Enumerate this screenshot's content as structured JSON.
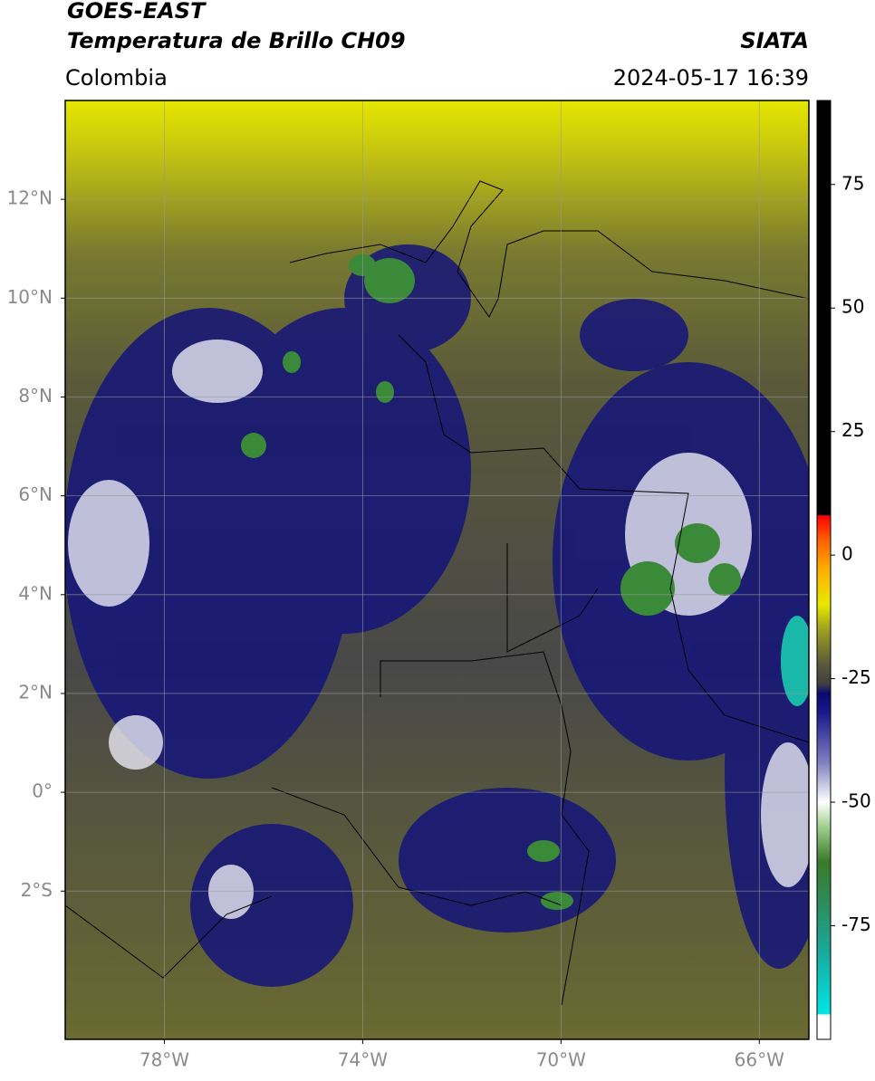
{
  "header": {
    "title": "GOES-EAST",
    "subtitle": "Temperatura de Brillo CH09",
    "source": "SIATA",
    "region": "Colombia",
    "timestamp": "2024-05-17 16:39"
  },
  "map": {
    "lon_range": [
      -80,
      -65
    ],
    "lat_range": [
      -5,
      14
    ],
    "grid": true,
    "lon_ticks": [
      {
        "value": -78,
        "label": "78°W"
      },
      {
        "value": -74,
        "label": "74°W"
      },
      {
        "value": -70,
        "label": "70°W"
      },
      {
        "value": -66,
        "label": "66°W"
      }
    ],
    "lat_ticks": [
      {
        "value": 12,
        "label": "12°N"
      },
      {
        "value": 10,
        "label": "10°N"
      },
      {
        "value": 8,
        "label": "8°N"
      },
      {
        "value": 6,
        "label": "6°N"
      },
      {
        "value": 4,
        "label": "4°N"
      },
      {
        "value": 2,
        "label": "2°N"
      },
      {
        "value": 0,
        "label": "0°"
      },
      {
        "value": -2,
        "label": "2°S"
      }
    ]
  },
  "colorbar": {
    "range": [
      -98,
      92
    ],
    "ticks": [
      75,
      50,
      25,
      0,
      -25,
      -50,
      -75
    ],
    "stops": [
      {
        "value": -98,
        "color": "#ffffff"
      },
      {
        "value": -93,
        "color": "#ffffff"
      },
      {
        "value": -92.9,
        "color": "#00e5e5"
      },
      {
        "value": -80,
        "color": "#1aa89a"
      },
      {
        "value": -70,
        "color": "#2e8b57"
      },
      {
        "value": -62,
        "color": "#3a7a2a"
      },
      {
        "value": -55,
        "color": "#9fcf8f"
      },
      {
        "value": -50,
        "color": "#ffffff"
      },
      {
        "value": -42,
        "color": "#8080c0"
      },
      {
        "value": -32,
        "color": "#1a1a8a"
      },
      {
        "value": -28,
        "color": "#0a0a6e"
      },
      {
        "value": -26,
        "color": "#404040"
      },
      {
        "value": -22,
        "color": "#5a5a3a"
      },
      {
        "value": -15,
        "color": "#a0a020"
      },
      {
        "value": -10,
        "color": "#e8e800"
      },
      {
        "value": -3,
        "color": "#ffb000"
      },
      {
        "value": 3,
        "color": "#ff6000"
      },
      {
        "value": 8,
        "color": "#ff0000"
      },
      {
        "value": 8.1,
        "color": "#000000"
      },
      {
        "value": 92,
        "color": "#000000"
      }
    ]
  }
}
